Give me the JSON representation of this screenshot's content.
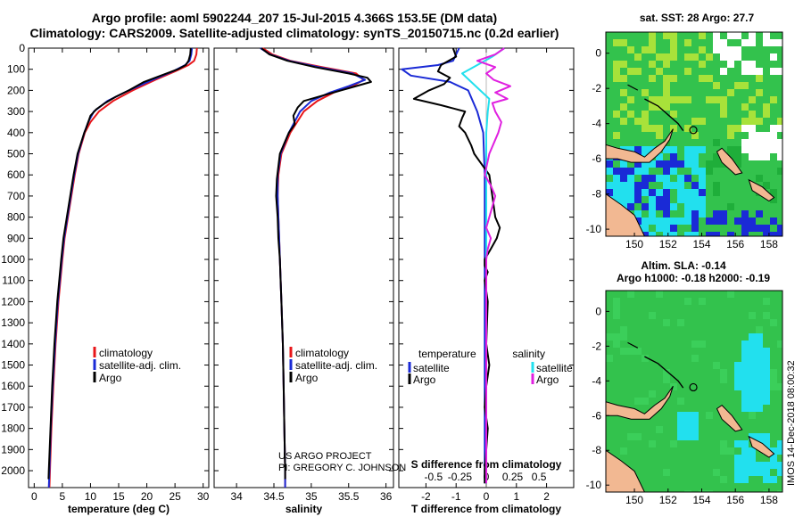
{
  "header": {
    "line1": "Argo profile: aoml 5902244_207 15-Jul-2015 4.366S 153.5E (DM data)",
    "line2": "Climatology: CARS2009. Satellite-adjusted climatology: synTS_20150715.nc (0.2d earlier)"
  },
  "colors": {
    "climatology": "#e8161a",
    "satellite": "#1a2ad6",
    "argo": "#000000",
    "argo_salinity": "#e020e0",
    "satellite_salinity": "#22e0ee"
  },
  "depth_axis": {
    "ticks": [
      "0",
      "100",
      "200",
      "300",
      "400",
      "500",
      "600",
      "700",
      "800",
      "900",
      "1000",
      "1100",
      "1200",
      "1300",
      "1400",
      "1500",
      "1600",
      "1700",
      "1800",
      "1900",
      "2000"
    ]
  },
  "chart_data": [
    {
      "type": "line",
      "id": "temperature",
      "xlabel": "temperature (deg C)",
      "ylabel": "depth",
      "xlim": [
        -1,
        31
      ],
      "ylim": [
        2080,
        0
      ],
      "xticks": [
        0,
        5,
        10,
        15,
        20,
        25,
        30
      ],
      "xtick_labels": [
        "0",
        "5",
        "10",
        "15",
        "20",
        "25",
        "30"
      ],
      "legend": [
        "climatology",
        "satellite-adj. clim.",
        "Argo"
      ],
      "series": [
        {
          "name": "climatology",
          "color": "#e8161a",
          "depth": [
            0,
            30,
            60,
            80,
            110,
            150,
            200,
            250,
            300,
            350,
            400,
            500,
            600,
            700,
            800,
            900,
            1000,
            1200,
            1400,
            1600,
            1800,
            2000,
            2080
          ],
          "values": [
            28.9,
            28.8,
            28.4,
            27.4,
            25.0,
            21.5,
            17.5,
            14.0,
            11.5,
            10.0,
            9.0,
            7.9,
            7.2,
            6.6,
            6.0,
            5.4,
            5.0,
            4.3,
            3.8,
            3.4,
            3.05,
            2.8,
            2.7
          ]
        },
        {
          "name": "satellite-adj. clim.",
          "color": "#1a2ad6",
          "depth": [
            0,
            30,
            60,
            80,
            110,
            150,
            200,
            250,
            300,
            350,
            400,
            500,
            600,
            700,
            800,
            900,
            1000,
            1200,
            1400,
            1600,
            1800,
            2000,
            2080
          ],
          "values": [
            28.0,
            27.9,
            27.6,
            26.8,
            24.6,
            21.0,
            16.8,
            13.0,
            10.6,
            9.6,
            8.9,
            7.8,
            7.1,
            6.5,
            5.9,
            5.3,
            4.9,
            4.2,
            3.7,
            3.3,
            2.95,
            2.7,
            2.6
          ]
        },
        {
          "name": "Argo",
          "color": "#000000",
          "depth": [
            0,
            30,
            60,
            80,
            100,
            130,
            160,
            200,
            230,
            260,
            290,
            320,
            350,
            380,
            400,
            500,
            600,
            700,
            800,
            900,
            1000,
            1200,
            1400,
            1600,
            1800,
            2000,
            2040
          ],
          "values": [
            27.8,
            27.7,
            27.4,
            26.9,
            25.5,
            22.5,
            19.5,
            16.8,
            14.5,
            12.6,
            11.0,
            10.0,
            9.6,
            9.2,
            8.9,
            7.7,
            7.0,
            6.4,
            5.8,
            5.2,
            4.8,
            4.1,
            3.6,
            3.2,
            2.9,
            2.6,
            2.55
          ]
        }
      ]
    },
    {
      "type": "line",
      "id": "salinity",
      "xlabel": "salinity",
      "ylabel": "depth",
      "xlim": [
        33.7,
        36.1
      ],
      "ylim": [
        2080,
        0
      ],
      "xticks": [
        34,
        34.5,
        35,
        35.5,
        36
      ],
      "xtick_labels": [
        "34",
        "34.5",
        "35",
        "35.5",
        "36"
      ],
      "legend": [
        "climatology",
        "satellite-adj. clim.",
        "Argo"
      ],
      "series": [
        {
          "name": "climatology",
          "color": "#e8161a",
          "depth": [
            0,
            30,
            60,
            90,
            120,
            150,
            180,
            210,
            250,
            300,
            400,
            500,
            600,
            700,
            800,
            900,
            1000,
            1200,
            1400,
            1600,
            1800,
            2000,
            2080
          ],
          "values": [
            34.35,
            34.48,
            34.72,
            35.15,
            35.6,
            35.7,
            35.55,
            35.3,
            35.08,
            34.9,
            34.72,
            34.6,
            34.56,
            34.55,
            34.56,
            34.57,
            34.58,
            34.6,
            34.62,
            34.63,
            34.64,
            34.65,
            34.65
          ]
        },
        {
          "name": "satellite-adj. clim.",
          "color": "#1a2ad6",
          "depth": [
            0,
            30,
            60,
            90,
            120,
            150,
            180,
            210,
            250,
            300,
            400,
            500,
            600,
            700,
            800,
            900,
            1000,
            1200,
            1400,
            1600,
            1800,
            2000,
            2080
          ],
          "values": [
            34.32,
            34.45,
            34.7,
            35.1,
            35.55,
            35.72,
            35.5,
            35.25,
            35.0,
            34.85,
            34.7,
            34.59,
            34.55,
            34.55,
            34.56,
            34.57,
            34.58,
            34.6,
            34.62,
            34.63,
            34.64,
            34.65,
            34.65
          ]
        },
        {
          "name": "Argo",
          "color": "#000000",
          "depth": [
            0,
            30,
            60,
            90,
            120,
            140,
            160,
            190,
            220,
            250,
            280,
            320,
            360,
            400,
            450,
            500,
            560,
            620,
            700,
            800,
            900,
            1000,
            1100,
            1200,
            1400,
            1600,
            1800,
            2000,
            2040
          ],
          "values": [
            34.33,
            34.44,
            34.68,
            35.05,
            35.5,
            35.75,
            35.8,
            35.5,
            35.2,
            34.9,
            34.82,
            34.76,
            34.78,
            34.7,
            34.64,
            34.58,
            34.56,
            34.54,
            34.53,
            34.55,
            34.56,
            34.58,
            34.59,
            34.6,
            34.62,
            34.63,
            34.64,
            34.65,
            34.65
          ]
        }
      ]
    },
    {
      "type": "line",
      "id": "difference",
      "xlabel": "T difference from climatology",
      "xlabel_top": "S difference from climatology",
      "xlim": [
        -2.9,
        2.9
      ],
      "ylim": [
        2080,
        0
      ],
      "xticks": [
        -2,
        -1,
        0,
        1,
        2
      ],
      "xtick_labels": [
        "-2",
        "-1",
        "0",
        "1",
        "2"
      ],
      "xticks_top": [
        -1.75,
        -0.875,
        0,
        0.875,
        1.75
      ],
      "xtick_labels_top": [
        "-0.5",
        "-0.25",
        "0",
        "0.25",
        "0.5"
      ],
      "legend_left": {
        "header": "temperature",
        "items": [
          "satellite",
          "Argo"
        ]
      },
      "legend_right": {
        "header": "salinity",
        "items": [
          "satellite",
          "Argo"
        ]
      },
      "series": [
        {
          "name": "T satellite",
          "color": "#1a2ad6",
          "depth": [
            0,
            30,
            60,
            80,
            100,
            130,
            160,
            200,
            300,
            400,
            600,
            800,
            1000,
            1500,
            2000,
            2060
          ],
          "values": [
            -0.9,
            -1.0,
            -1.1,
            -1.6,
            -2.8,
            -2.5,
            -1.2,
            -0.6,
            -0.3,
            -0.1,
            -0.05,
            -0.05,
            -0.05,
            -0.05,
            -0.05,
            -0.05
          ]
        },
        {
          "name": "T Argo",
          "color": "#000000",
          "depth": [
            0,
            40,
            80,
            110,
            140,
            170,
            200,
            240,
            270,
            300,
            330,
            370,
            400,
            430,
            460,
            500,
            520,
            560,
            600,
            700,
            800,
            850,
            900,
            950,
            1000,
            1030,
            1060,
            1100,
            1200,
            1400,
            1500,
            1600,
            1700,
            1800,
            1900,
            2000,
            2060
          ],
          "values": [
            -1.1,
            -1.0,
            -1.5,
            -1.6,
            -1.2,
            -1.4,
            -1.9,
            -2.4,
            -1.5,
            -0.7,
            -0.8,
            -0.9,
            -0.7,
            -0.6,
            -0.5,
            -0.4,
            -0.3,
            -0.1,
            0.1,
            0.2,
            0.3,
            0.45,
            0.35,
            0.15,
            -0.05,
            -0.05,
            0.05,
            -0.05,
            0.05,
            0.0,
            0.1,
            0.0,
            -0.05,
            0.05,
            0.0,
            -0.05,
            -0.05
          ]
        },
        {
          "name": "S satellite",
          "color": "#22e0ee",
          "depth": [
            0,
            40,
            80,
            120,
            160,
            200,
            240,
            300,
            400,
            500,
            600,
            700,
            800,
            1000,
            1500,
            2000,
            2060
          ],
          "values": [
            0.6,
            0.2,
            -0.3,
            -0.8,
            -0.5,
            -0.2,
            0.1,
            0.05,
            0.0,
            0.0,
            0.0,
            0.0,
            0.0,
            0.0,
            0.0,
            0.0,
            0.0
          ]
        },
        {
          "name": "S Argo",
          "color": "#e020e0",
          "depth": [
            0,
            30,
            60,
            90,
            120,
            150,
            180,
            210,
            240,
            260,
            300,
            350,
            400,
            500,
            600,
            650,
            700,
            750,
            800,
            850,
            900,
            950,
            1000,
            1200,
            1500,
            2000,
            2060
          ],
          "values": [
            0.6,
            0.3,
            -0.3,
            0.3,
            0.0,
            0.25,
            0.8,
            0.3,
            0.7,
            0.2,
            0.3,
            0.5,
            0.4,
            0.1,
            -0.05,
            0.15,
            0.3,
            0.2,
            0.1,
            0.0,
            0.15,
            0.05,
            0.0,
            0.0,
            0.0,
            0.0,
            0.0
          ]
        }
      ]
    }
  ],
  "annotations": {
    "line1": "US ARGO PROJECT",
    "line2": "PI: GREGORY C. JOHNSON"
  },
  "maps": {
    "top": {
      "title": "sat. SST: 28 Argo: 27.7",
      "xticks": [
        "150",
        "152",
        "154",
        "156",
        "158"
      ],
      "yticks": [
        "0",
        "-2",
        "-4",
        "-6",
        "-8",
        "-10"
      ]
    },
    "bottom": {
      "title1": "Altim. SLA: -0.14",
      "title2": "Argo h1000: -0.18 h2000: -0.19",
      "xticks": [
        "150",
        "152",
        "154",
        "156",
        "158"
      ],
      "yticks": [
        "0",
        "-2",
        "-4",
        "-6",
        "-8",
        "-10"
      ]
    }
  },
  "footer": {
    "stamp": "IMOS 14-Dec-2018 08:00:32"
  }
}
